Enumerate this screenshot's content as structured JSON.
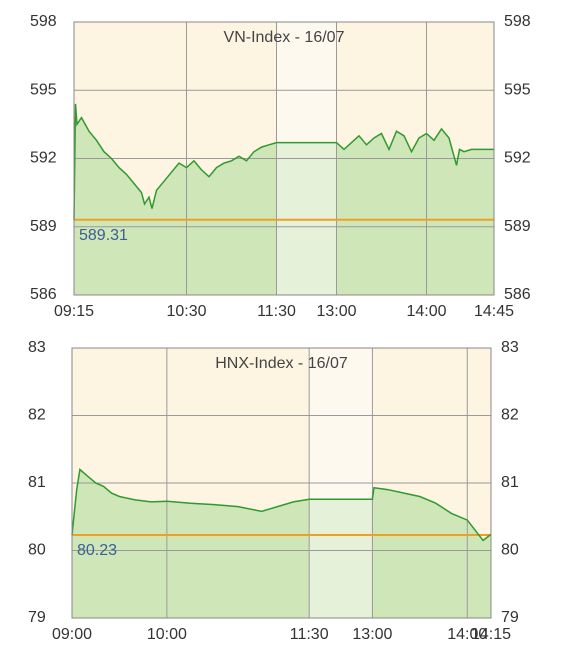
{
  "chart_data": [
    {
      "type": "line",
      "title": "VN-Index - 16/07",
      "x": [
        "09:15",
        "09:16",
        "09:17",
        "09:20",
        "09:25",
        "09:30",
        "09:35",
        "09:40",
        "09:45",
        "09:50",
        "09:55",
        "10:00",
        "10:02",
        "10:05",
        "10:07",
        "10:10",
        "10:15",
        "10:20",
        "10:25",
        "10:30",
        "10:35",
        "10:40",
        "10:45",
        "10:50",
        "10:55",
        "11:00",
        "11:05",
        "11:10",
        "11:15",
        "11:20",
        "11:25",
        "11:30",
        "13:00",
        "13:05",
        "13:10",
        "13:15",
        "13:20",
        "13:25",
        "13:30",
        "13:35",
        "13:40",
        "13:45",
        "13:50",
        "13:55",
        "14:00",
        "14:05",
        "14:10",
        "14:15",
        "14:20",
        "14:22",
        "14:25",
        "14:30",
        "14:35",
        "14:45"
      ],
      "series": [
        {
          "color": "#2f9a2f",
          "values": [
            589.3,
            594.4,
            593.5,
            593.8,
            593.2,
            592.8,
            592.3,
            592.0,
            591.6,
            591.3,
            590.9,
            590.5,
            590.0,
            590.3,
            589.8,
            590.6,
            591.0,
            591.4,
            591.8,
            591.6,
            591.9,
            591.5,
            591.2,
            591.6,
            591.8,
            591.9,
            592.1,
            591.9,
            592.3,
            592.5,
            592.6,
            592.7,
            592.7,
            592.4,
            592.7,
            593.0,
            592.6,
            592.9,
            593.1,
            592.4,
            593.2,
            593.0,
            592.3,
            592.9,
            593.1,
            592.8,
            593.3,
            592.9,
            591.7,
            592.4,
            592.3,
            592.4,
            592.4,
            592.4
          ]
        }
      ],
      "reference": 589.31,
      "reference_color": "#f0a020",
      "break": [
        "11:30",
        "13:00"
      ],
      "xlim": [
        "09:15",
        "14:45"
      ],
      "xticks": [
        "09:15",
        "10:30",
        "11:30",
        "13:00",
        "14:00",
        "14:45"
      ],
      "ylim": [
        586,
        598
      ],
      "yticks": [
        586,
        589,
        592,
        595,
        598
      ],
      "grid": true
    },
    {
      "type": "line",
      "title": "HNX-Index - 16/07",
      "x": [
        "09:00",
        "09:03",
        "09:05",
        "09:10",
        "09:15",
        "09:20",
        "09:25",
        "09:30",
        "09:40",
        "09:50",
        "10:00",
        "10:15",
        "10:30",
        "10:45",
        "11:00",
        "11:10",
        "11:20",
        "11:30",
        "13:00",
        "13:01",
        "13:10",
        "13:20",
        "13:30",
        "13:40",
        "13:50",
        "14:00",
        "14:05",
        "14:10",
        "14:15"
      ],
      "series": [
        {
          "color": "#2f9a2f",
          "values": [
            80.23,
            80.9,
            81.2,
            81.1,
            81.0,
            80.95,
            80.85,
            80.8,
            80.75,
            80.72,
            80.73,
            80.7,
            80.68,
            80.65,
            80.58,
            80.65,
            80.72,
            80.76,
            80.76,
            80.93,
            80.9,
            80.85,
            80.8,
            80.7,
            80.55,
            80.45,
            80.3,
            80.15,
            80.24
          ]
        }
      ],
      "reference": 80.23,
      "reference_color": "#f0a020",
      "break": [
        "11:30",
        "13:00"
      ],
      "xlim": [
        "09:00",
        "14:15"
      ],
      "xticks": [
        "09:00",
        "10:00",
        "11:30",
        "13:00",
        "14:00",
        "14:15"
      ],
      "ylim": [
        79,
        83
      ],
      "yticks": [
        79,
        80,
        81,
        82,
        83
      ],
      "grid": true
    }
  ]
}
